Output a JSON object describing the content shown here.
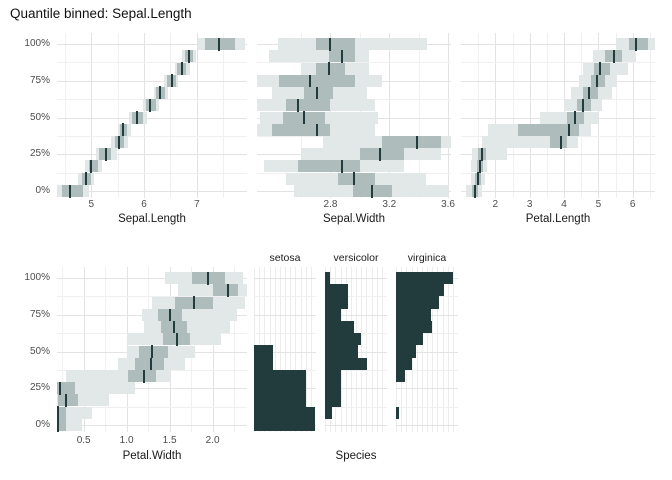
{
  "title": "Quantile binned: Sepal.Length",
  "colors": {
    "median": "#223b3c",
    "inner_band": "#aebcbc",
    "outer_band": "#e2e8e8",
    "species_bar": "#223b3c",
    "grid_major": "#e3e3e3",
    "grid_minor": "#f0f0f0",
    "species_grid": "#ececec",
    "axis_text": "#4d4d4d",
    "title_text": "#111111"
  },
  "y_axis": {
    "tick_labels": [
      "0%",
      "25%",
      "50%",
      "75%",
      "100%"
    ],
    "tick_values": [
      0,
      25,
      50,
      75,
      100
    ],
    "minor_values": [
      12.5,
      37.5,
      62.5,
      87.5
    ]
  },
  "chart_data": [
    {
      "type": "interval",
      "xlabel": "Sepal.Length",
      "xlim": [
        4.35,
        7.95
      ],
      "x_ticks": [
        5,
        6,
        7
      ],
      "x_minor": [
        4.5,
        5.5,
        6.5,
        7.5
      ],
      "bins": [
        {
          "q": 0,
          "median": 4.6,
          "inner": [
            4.45,
            4.85
          ],
          "outer": [
            4.3,
            4.95
          ]
        },
        {
          "q": 8.33,
          "median": 4.9,
          "inner": [
            4.82,
            5.0
          ],
          "outer": [
            4.75,
            5.05
          ]
        },
        {
          "q": 16.67,
          "median": 5.0,
          "inner": [
            4.95,
            5.12
          ],
          "outer": [
            4.88,
            5.2
          ]
        },
        {
          "q": 25,
          "median": 5.27,
          "inner": [
            5.15,
            5.38
          ],
          "outer": [
            5.08,
            5.48
          ]
        },
        {
          "q": 33.33,
          "median": 5.52,
          "inner": [
            5.45,
            5.62
          ],
          "outer": [
            5.38,
            5.7
          ]
        },
        {
          "q": 41.67,
          "median": 5.6,
          "inner": [
            5.55,
            5.68
          ],
          "outer": [
            5.5,
            5.75
          ]
        },
        {
          "q": 50,
          "median": 5.87,
          "inner": [
            5.78,
            5.98
          ],
          "outer": [
            5.72,
            6.05
          ]
        },
        {
          "q": 58.33,
          "median": 6.12,
          "inner": [
            6.03,
            6.22
          ],
          "outer": [
            5.98,
            6.28
          ]
        },
        {
          "q": 66.67,
          "median": 6.3,
          "inner": [
            6.23,
            6.4
          ],
          "outer": [
            6.18,
            6.45
          ]
        },
        {
          "q": 75,
          "median": 6.52,
          "inner": [
            6.44,
            6.6
          ],
          "outer": [
            6.38,
            6.65
          ]
        },
        {
          "q": 83.33,
          "median": 6.71,
          "inner": [
            6.62,
            6.8
          ],
          "outer": [
            6.58,
            6.87
          ]
        },
        {
          "q": 91.67,
          "median": 6.85,
          "inner": [
            6.78,
            6.92
          ],
          "outer": [
            6.72,
            6.98
          ]
        },
        {
          "q": 100,
          "median": 7.42,
          "inner": [
            7.15,
            7.72
          ],
          "outer": [
            7.02,
            7.92
          ]
        }
      ]
    },
    {
      "type": "interval",
      "xlabel": "Sepal.Width",
      "xlim": [
        2.3,
        3.62
      ],
      "x_ticks": [
        2.8,
        3.2,
        3.6
      ],
      "x_minor": [
        2.6,
        3.0,
        3.4
      ],
      "bins": [
        {
          "q": 0,
          "median": 3.08,
          "inner": [
            2.95,
            3.22
          ],
          "outer": [
            2.55,
            3.6
          ]
        },
        {
          "q": 8.33,
          "median": 2.96,
          "inner": [
            2.85,
            3.1
          ],
          "outer": [
            2.5,
            3.45
          ]
        },
        {
          "q": 16.67,
          "median": 2.88,
          "inner": [
            2.58,
            3.0
          ],
          "outer": [
            2.35,
            3.3
          ]
        },
        {
          "q": 25,
          "median": 3.14,
          "inner": [
            3.0,
            3.3
          ],
          "outer": [
            2.6,
            3.55
          ]
        },
        {
          "q": 33.33,
          "median": 3.39,
          "inner": [
            3.15,
            3.55
          ],
          "outer": [
            2.75,
            3.62
          ]
        },
        {
          "q": 41.67,
          "median": 2.71,
          "inner": [
            2.4,
            2.8
          ],
          "outer": [
            2.3,
            3.1
          ]
        },
        {
          "q": 50,
          "median": 2.62,
          "inner": [
            2.48,
            2.76
          ],
          "outer": [
            2.32,
            3.12
          ]
        },
        {
          "q": 58.33,
          "median": 2.58,
          "inner": [
            2.5,
            2.8
          ],
          "outer": [
            2.3,
            3.1
          ]
        },
        {
          "q": 66.67,
          "median": 2.71,
          "inner": [
            2.62,
            2.82
          ],
          "outer": [
            2.4,
            3.05
          ]
        },
        {
          "q": 75,
          "median": 2.66,
          "inner": [
            2.45,
            2.97
          ],
          "outer": [
            2.3,
            3.15
          ]
        },
        {
          "q": 83.33,
          "median": 2.79,
          "inner": [
            2.7,
            2.9
          ],
          "outer": [
            2.6,
            3.06
          ]
        },
        {
          "q": 91.67,
          "median": 2.88,
          "inner": [
            2.79,
            2.97
          ],
          "outer": [
            2.38,
            3.06
          ]
        },
        {
          "q": 100,
          "median": 2.8,
          "inner": [
            2.7,
            2.97
          ],
          "outer": [
            2.44,
            3.46
          ]
        }
      ]
    },
    {
      "type": "interval",
      "xlabel": "Petal.Length",
      "xlim": [
        1.0,
        6.65
      ],
      "x_ticks": [
        2,
        3,
        4,
        5,
        6
      ],
      "x_minor": [
        1.5,
        2.5,
        3.5,
        4.5,
        5.5,
        6.5
      ],
      "bins": [
        {
          "q": 0,
          "median": 1.4,
          "inner": [
            1.33,
            1.5
          ],
          "outer": [
            1.15,
            1.6
          ]
        },
        {
          "q": 8.33,
          "median": 1.5,
          "inner": [
            1.42,
            1.58
          ],
          "outer": [
            1.3,
            1.7
          ]
        },
        {
          "q": 16.67,
          "median": 1.55,
          "inner": [
            1.46,
            1.64
          ],
          "outer": [
            1.3,
            1.75
          ]
        },
        {
          "q": 25,
          "median": 1.62,
          "inner": [
            1.5,
            1.74
          ],
          "outer": [
            1.32,
            2.35
          ]
        },
        {
          "q": 33.33,
          "median": 3.9,
          "inner": [
            3.6,
            4.1
          ],
          "outer": [
            1.6,
            4.4
          ]
        },
        {
          "q": 41.67,
          "median": 4.15,
          "inner": [
            2.65,
            4.45
          ],
          "outer": [
            1.8,
            4.8
          ]
        },
        {
          "q": 50,
          "median": 4.32,
          "inner": [
            4.1,
            4.58
          ],
          "outer": [
            3.3,
            5.0
          ]
        },
        {
          "q": 58.33,
          "median": 4.55,
          "inner": [
            4.38,
            4.78
          ],
          "outer": [
            4.0,
            5.1
          ]
        },
        {
          "q": 66.67,
          "median": 4.72,
          "inner": [
            4.55,
            4.98
          ],
          "outer": [
            4.2,
            5.4
          ]
        },
        {
          "q": 75,
          "median": 4.95,
          "inner": [
            4.78,
            5.2
          ],
          "outer": [
            4.45,
            5.55
          ]
        },
        {
          "q": 83.33,
          "median": 5.05,
          "inner": [
            4.88,
            5.35
          ],
          "outer": [
            4.55,
            5.85
          ]
        },
        {
          "q": 91.67,
          "median": 5.45,
          "inner": [
            5.2,
            5.7
          ],
          "outer": [
            4.85,
            6.1
          ]
        },
        {
          "q": 100,
          "median": 6.1,
          "inner": [
            5.88,
            6.45
          ],
          "outer": [
            5.5,
            6.7
          ]
        }
      ]
    },
    {
      "type": "interval",
      "xlabel": "Petal.Width",
      "xlim": [
        0.19,
        2.4
      ],
      "x_ticks": [
        0.5,
        1.0,
        1.5,
        2.0
      ],
      "x_minor": [
        0.25,
        0.75,
        1.25,
        1.75,
        2.25
      ],
      "bins": [
        {
          "q": 0,
          "median": 0.2,
          "inner": [
            0.14,
            0.3
          ],
          "outer": [
            0.1,
            0.48
          ]
        },
        {
          "q": 8.33,
          "median": 0.2,
          "inner": [
            0.15,
            0.3
          ],
          "outer": [
            0.1,
            0.6
          ]
        },
        {
          "q": 16.67,
          "median": 0.3,
          "inner": [
            0.2,
            0.44
          ],
          "outer": [
            0.12,
            0.8
          ]
        },
        {
          "q": 25,
          "median": 0.22,
          "inner": [
            0.15,
            0.4
          ],
          "outer": [
            0.1,
            1.1
          ]
        },
        {
          "q": 33.33,
          "median": 1.2,
          "inner": [
            1.02,
            1.34
          ],
          "outer": [
            0.3,
            1.5
          ]
        },
        {
          "q": 41.67,
          "median": 1.28,
          "inner": [
            1.1,
            1.44
          ],
          "outer": [
            0.9,
            1.68
          ]
        },
        {
          "q": 50,
          "median": 1.3,
          "inner": [
            1.14,
            1.48
          ],
          "outer": [
            1.0,
            1.8
          ]
        },
        {
          "q": 58.33,
          "median": 1.58,
          "inner": [
            1.42,
            1.74
          ],
          "outer": [
            1.0,
            2.1
          ]
        },
        {
          "q": 66.67,
          "median": 1.55,
          "inner": [
            1.4,
            1.7
          ],
          "outer": [
            1.2,
            2.2
          ]
        },
        {
          "q": 75,
          "median": 1.5,
          "inner": [
            1.36,
            1.64
          ],
          "outer": [
            1.18,
            2.28
          ]
        },
        {
          "q": 83.33,
          "median": 1.78,
          "inner": [
            1.56,
            2.0
          ],
          "outer": [
            1.3,
            2.38
          ]
        },
        {
          "q": 91.67,
          "median": 2.18,
          "inner": [
            2.0,
            2.3
          ],
          "outer": [
            1.6,
            2.4
          ]
        },
        {
          "q": 100,
          "median": 1.95,
          "inner": [
            1.76,
            2.14
          ],
          "outer": [
            1.45,
            2.35
          ]
        }
      ]
    },
    {
      "type": "histogram",
      "xlabel": "Species",
      "groups": [
        {
          "label": "setosa",
          "props": [
            0.98,
            0.98,
            0.84,
            0.84,
            0.84,
            0.31,
            0.31,
            0,
            0,
            0,
            0,
            0,
            0
          ]
        },
        {
          "label": "versicolor",
          "props": [
            0,
            0.12,
            0.25,
            0.25,
            0.25,
            0.67,
            0.53,
            0.58,
            0.47,
            0.25,
            0.37,
            0.37,
            0.08
          ]
        },
        {
          "label": "virginica",
          "props": [
            0,
            0.05,
            0,
            0,
            0.14,
            0.25,
            0.33,
            0.43,
            0.58,
            0.56,
            0.7,
            0.78,
            0.92
          ]
        }
      ]
    }
  ]
}
